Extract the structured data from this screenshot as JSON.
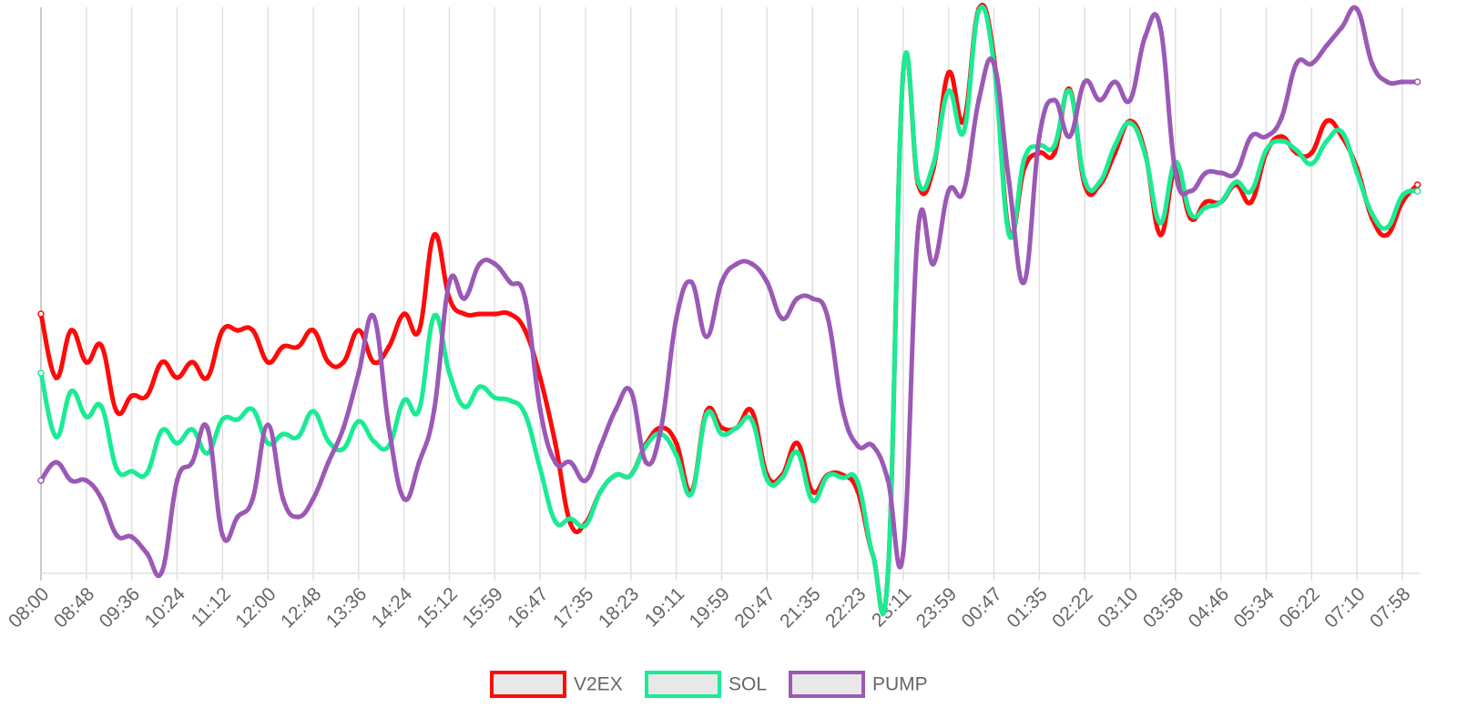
{
  "chart_data": {
    "type": "line",
    "categories": [
      "08:00",
      null,
      null,
      "08:48",
      null,
      null,
      "09:36",
      null,
      null,
      "10:24",
      null,
      null,
      "11:12",
      null,
      null,
      "12:00",
      null,
      null,
      "12:48",
      null,
      null,
      "13:36",
      null,
      null,
      "14:24",
      null,
      null,
      "15:12",
      null,
      null,
      "15:59",
      null,
      null,
      "16:47",
      null,
      null,
      "17:35",
      null,
      null,
      "18:23",
      null,
      null,
      "19:11",
      null,
      null,
      "19:59",
      null,
      null,
      "20:47",
      null,
      null,
      "21:35",
      null,
      null,
      "22:23",
      null,
      null,
      "23:11",
      null,
      null,
      "23:59",
      null,
      null,
      "00:47",
      null,
      null,
      "01:35",
      null,
      null,
      "02:22",
      null,
      null,
      "03:10",
      null,
      null,
      "03:58",
      null,
      null,
      "04:46",
      null,
      null,
      "05:34",
      null,
      null,
      "06:22",
      null,
      null,
      "07:10",
      null,
      null,
      "07:58",
      null
    ],
    "series": [
      {
        "name": "V2EX",
        "color": "#ff0a0a",
        "values": [
          285,
          215,
          267,
          232,
          250,
          178,
          195,
          195,
          232,
          215,
          232,
          215,
          267,
          267,
          267,
          232,
          249,
          249,
          267,
          232,
          232,
          267,
          232,
          249,
          285,
          267,
          372,
          302,
          285,
          285,
          285,
          285,
          267,
          215,
          143,
          55,
          55,
          90,
          108,
          108,
          142,
          160,
          143,
          90,
          178,
          160,
          160,
          178,
          108,
          108,
          143,
          90,
          108,
          108,
          90,
          20,
          2,
          550,
          427,
          445,
          550,
          497,
          620,
          567,
          375,
          445,
          462,
          462,
          532,
          427,
          427,
          462,
          497,
          462,
          372,
          445,
          390,
          408,
          408,
          427,
          408,
          462,
          480,
          462,
          462,
          497,
          480,
          445,
          390,
          372,
          408,
          427
        ]
      },
      {
        "name": "SOL",
        "color": "#1aeb94",
        "values": [
          220,
          150,
          200,
          172,
          183,
          115,
          112,
          110,
          157,
          143,
          158,
          132,
          169,
          169,
          180,
          143,
          153,
          150,
          178,
          145,
          137,
          167,
          145,
          140,
          190,
          180,
          283,
          220,
          183,
          205,
          193,
          190,
          175,
          115,
          57,
          60,
          53,
          90,
          108,
          108,
          140,
          153,
          130,
          87,
          175,
          153,
          160,
          168,
          103,
          105,
          133,
          80,
          107,
          105,
          100,
          20,
          2,
          550,
          430,
          450,
          530,
          485,
          618,
          560,
          372,
          455,
          470,
          470,
          530,
          432,
          430,
          470,
          495,
          460,
          385,
          452,
          395,
          402,
          408,
          430,
          420,
          465,
          475,
          465,
          450,
          475,
          485,
          440,
          395,
          380,
          415,
          420
        ]
      },
      {
        "name": "PUMP",
        "color": "#9b59b6",
        "values": [
          102,
          122,
          102,
          102,
          82,
          42,
          40,
          22,
          2,
          102,
          122,
          160,
          42,
          62,
          82,
          163,
          82,
          62,
          82,
          122,
          160,
          220,
          282,
          160,
          82,
          122,
          180,
          320,
          302,
          340,
          340,
          320,
          302,
          180,
          122,
          122,
          102,
          140,
          180,
          200,
          122,
          160,
          280,
          320,
          260,
          320,
          340,
          340,
          320,
          280,
          302,
          302,
          282,
          180,
          140,
          140,
          102,
          22,
          380,
          340,
          420,
          420,
          520,
          560,
          430,
          320,
          480,
          520,
          480,
          540,
          520,
          540,
          520,
          590,
          600,
          440,
          420,
          440,
          440,
          440,
          480,
          480,
          500,
          560,
          560,
          580,
          600,
          620,
          560,
          540,
          540,
          540
        ]
      }
    ],
    "ylim": [
      0,
      622
    ],
    "grid": true,
    "legend": "bottom"
  }
}
